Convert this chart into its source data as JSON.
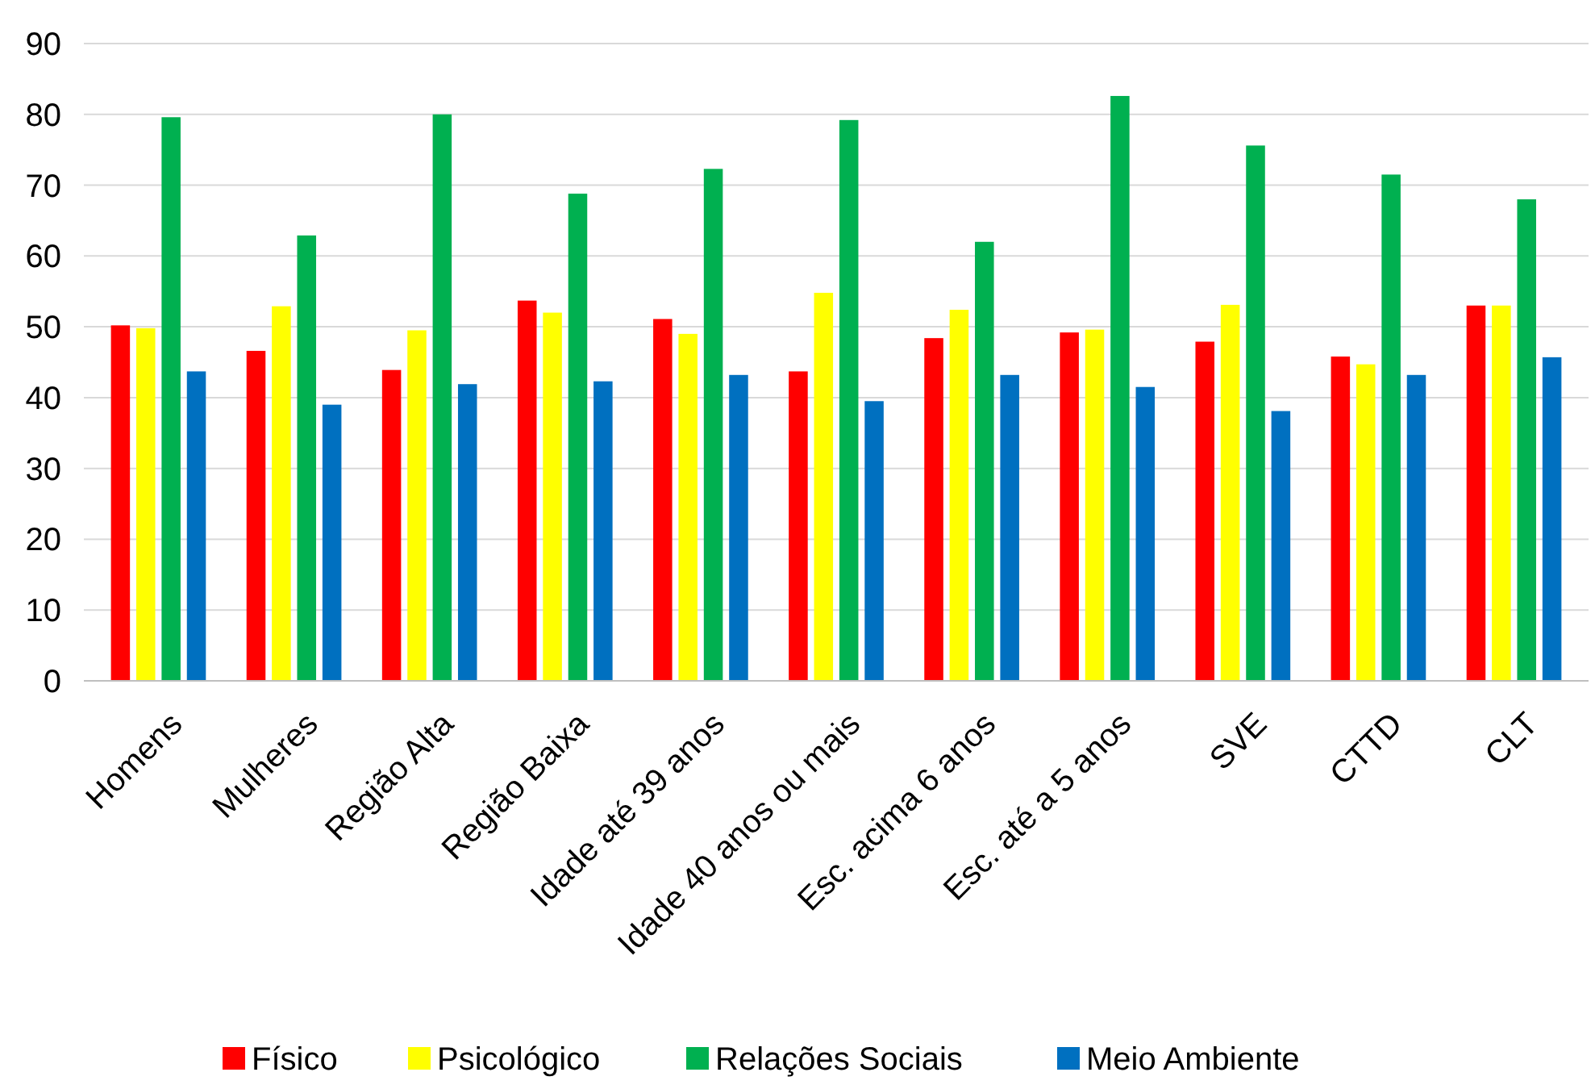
{
  "chart_data": {
    "type": "bar",
    "categories": [
      "Homens",
      "Mulheres",
      "Região Alta",
      "Região Baixa",
      "Idade até 39 anos",
      "Idade 40 anos ou mais",
      "Esc. acima 6 anos",
      "Esc. até a 5 anos",
      "SVE",
      "CTTD",
      "CLT"
    ],
    "series": [
      {
        "name": "Físico",
        "color": "#ff0000",
        "values": [
          50.2,
          46.6,
          43.9,
          53.7,
          51.1,
          43.7,
          48.4,
          49.2,
          47.9,
          45.8,
          53.0
        ]
      },
      {
        "name": "Psicológico",
        "color": "#ffff00",
        "values": [
          49.8,
          52.9,
          49.5,
          52.0,
          49.0,
          54.8,
          52.4,
          49.6,
          53.1,
          44.7,
          53.0
        ]
      },
      {
        "name": "Relações Sociais",
        "color": "#00b050",
        "values": [
          79.6,
          62.9,
          80.0,
          68.8,
          72.3,
          79.2,
          62.0,
          82.6,
          75.6,
          71.5,
          68.0
        ]
      },
      {
        "name": "Meio Ambiente",
        "color": "#0070c0",
        "values": [
          43.7,
          39.0,
          41.9,
          42.3,
          43.2,
          39.5,
          43.2,
          41.5,
          38.1,
          43.2,
          45.7
        ]
      }
    ],
    "ylim": [
      0,
      90
    ],
    "yticks": [
      0,
      10,
      20,
      30,
      40,
      50,
      60,
      70,
      80,
      90
    ],
    "grid": "y",
    "legend": "bottom"
  }
}
